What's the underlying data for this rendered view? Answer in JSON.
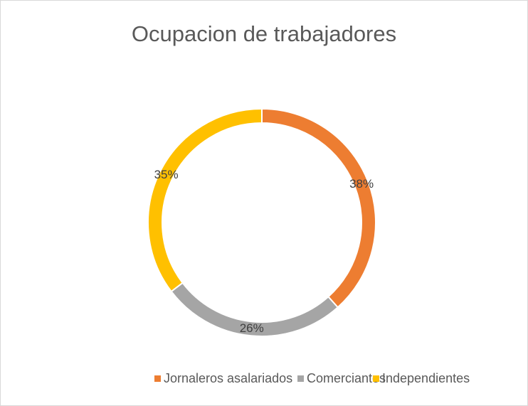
{
  "chart_data": {
    "type": "doughnut",
    "title": "Ocupacion de trabajadores",
    "categories": [
      "Jornaleros asalariados",
      "Comerciantes",
      "Independientes"
    ],
    "values": [
      38,
      26,
      35
    ],
    "value_labels": [
      "38%",
      "26%",
      "35%"
    ],
    "colors": [
      "#ed7d31",
      "#a5a5a5",
      "#ffc000"
    ],
    "legend": "bottom"
  }
}
